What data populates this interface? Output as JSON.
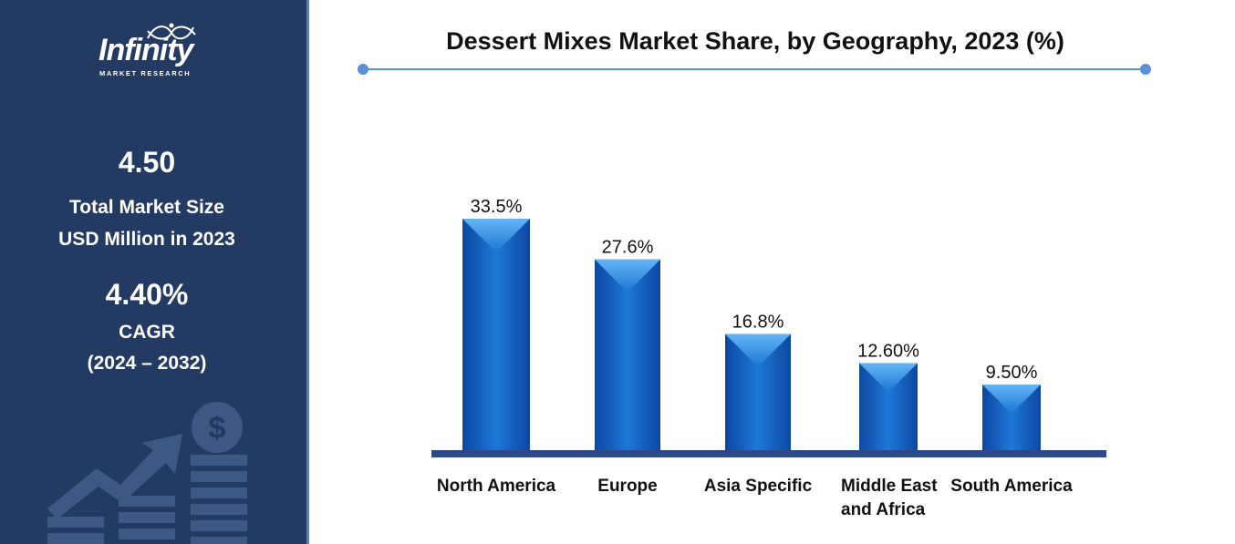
{
  "sidebar": {
    "logo_main": "Infinity",
    "logo_sub": "MARKET RESEARCH",
    "market_size_value": "4.50",
    "market_size_label_line1": "Total Market Size",
    "market_size_label_line2": "USD Million in 2023",
    "cagr_value": "4.40%",
    "cagr_label": "CAGR",
    "cagr_period": "(2024 – 2032)",
    "deco_icon": "dollar-growth-chart-icon"
  },
  "colors": {
    "sidebar_bg": "#233a63",
    "bar_main": "#1565c0",
    "bar_light": "#42a5f5",
    "baseline": "#2c4a8a",
    "rule": "#5b8fd6"
  },
  "chart_data": {
    "type": "bar",
    "title": "Dessert Mixes Market Share, by Geography, 2023 (%)",
    "categories": [
      "North America",
      "Europe",
      "Asia Specific",
      "Middle East and Africa",
      "South America"
    ],
    "category_lines": [
      [
        "North America"
      ],
      [
        "Europe"
      ],
      [
        "Asia Specific"
      ],
      [
        "Middle East",
        "and Africa"
      ],
      [
        "South America"
      ]
    ],
    "values": [
      33.5,
      27.6,
      16.8,
      12.6,
      9.5
    ],
    "data_labels": [
      "33.5%",
      "27.6%",
      "16.8%",
      "12.60%",
      "9.50%"
    ],
    "xlabel": "",
    "ylabel": "",
    "ylim": [
      0,
      33.5
    ],
    "grid": false,
    "legend": "none"
  }
}
